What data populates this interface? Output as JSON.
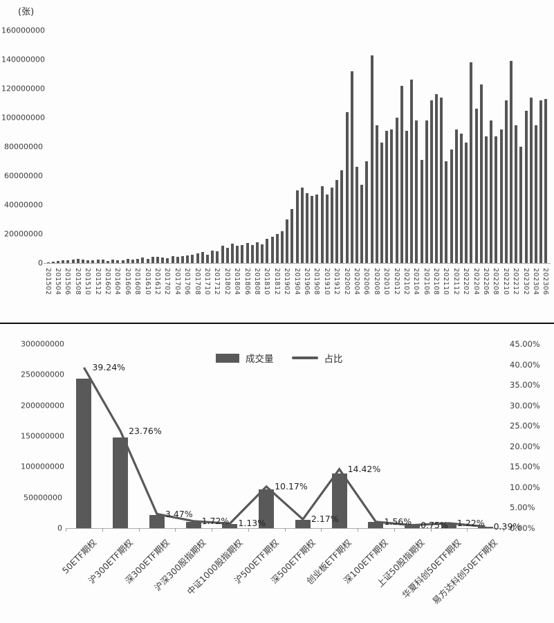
{
  "chart_data": [
    {
      "type": "bar",
      "title": "",
      "unit_label": "(张)",
      "xlabel": "",
      "ylabel": "(张)",
      "ylim": [
        0,
        160000000
      ],
      "ytick_labels": [
        "0",
        "20000000",
        "40000000",
        "60000000",
        "80000000",
        "100000000",
        "120000000",
        "140000000",
        "160000000"
      ],
      "xtick_every": 2,
      "grid": false,
      "bar_color": "#555555",
      "x": [
        "201502",
        "201503",
        "201504",
        "201505",
        "201506",
        "201507",
        "201508",
        "201509",
        "201510",
        "201511",
        "201512",
        "201601",
        "201602",
        "201603",
        "201604",
        "201605",
        "201606",
        "201607",
        "201608",
        "201609",
        "201610",
        "201611",
        "201612",
        "201701",
        "201702",
        "201703",
        "201704",
        "201705",
        "201706",
        "201707",
        "201708",
        "201709",
        "201710",
        "201711",
        "201712",
        "201801",
        "201802",
        "201803",
        "201804",
        "201805",
        "201806",
        "201807",
        "201808",
        "201809",
        "201810",
        "201811",
        "201812",
        "201901",
        "201902",
        "201903",
        "201904",
        "201905",
        "201906",
        "201907",
        "201908",
        "201909",
        "201910",
        "201911",
        "201912",
        "202001",
        "202002",
        "202003",
        "202004",
        "202005",
        "202006",
        "202007",
        "202008",
        "202009",
        "202010",
        "202011",
        "202012",
        "202101",
        "202102",
        "202103",
        "202104",
        "202105",
        "202106",
        "202107",
        "202108",
        "202109",
        "202110",
        "202111",
        "202112",
        "202201",
        "202202",
        "202203",
        "202204",
        "202205",
        "202206",
        "202207",
        "202208",
        "202209",
        "202210",
        "202211",
        "202212",
        "202301",
        "202302",
        "202303",
        "202304",
        "202305",
        "202306"
      ],
      "values": [
        400000,
        900000,
        1300000,
        1800000,
        2100000,
        2400000,
        2700000,
        2300000,
        1700000,
        2100000,
        2400000,
        2500000,
        1600000,
        2200000,
        2000000,
        2100000,
        2700000,
        2500000,
        3100000,
        3700000,
        2700000,
        4300000,
        4500000,
        3700000,
        3300000,
        4900000,
        4300000,
        4700000,
        5300000,
        5900000,
        6900000,
        7500000,
        5900000,
        8500000,
        7900000,
        12000000,
        10500000,
        13500000,
        12000000,
        12500000,
        14000000,
        12500000,
        14500000,
        13000000,
        16500000,
        18000000,
        20000000,
        22000000,
        30000000,
        37000000,
        50000000,
        52000000,
        48000000,
        46000000,
        47000000,
        53000000,
        47000000,
        52000000,
        57000000,
        64000000,
        104000000,
        132000000,
        66000000,
        54000000,
        70000000,
        143000000,
        95000000,
        83000000,
        91000000,
        92000000,
        100000000,
        122000000,
        91000000,
        126000000,
        98000000,
        71000000,
        98000000,
        112000000,
        116000000,
        114000000,
        70000000,
        78000000,
        92000000,
        89000000,
        83000000,
        138000000,
        106000000,
        123000000,
        87000000,
        98000000,
        87000000,
        92000000,
        112000000,
        139000000,
        95000000,
        80000000,
        105000000,
        114000000,
        95000000,
        112000000,
        113000000
      ]
    },
    {
      "type": "bar+line",
      "title": "",
      "legend": [
        "成交量",
        "占比"
      ],
      "legend_position": "top",
      "grid": false,
      "colors": {
        "bar": "#595959",
        "line": "#595959"
      },
      "categories": [
        "50ETF期权",
        "沪300ETF期权",
        "深300ETF期权",
        "沪深300股指期权",
        "中证1000股指期权",
        "沪500ETF期权",
        "深500ETF期权",
        "创业板ETF期权",
        "深100ETF期权",
        "上证50股指期权",
        "华夏科创50ETF期权",
        "易方达科创50ETF期权"
      ],
      "left_axis": {
        "min": 0,
        "max": 300000000,
        "step": 50000000,
        "tick_labels": [
          "0",
          "50000000",
          "100000000",
          "150000000",
          "200000000",
          "250000000",
          "300000000"
        ]
      },
      "right_axis": {
        "min": 0,
        "max": 45,
        "step": 5,
        "tick_labels": [
          "0.00%",
          "5.00%",
          "10.00%",
          "15.00%",
          "20.00%",
          "25.00%",
          "30.00%",
          "35.00%",
          "40.00%",
          "45.00%"
        ]
      },
      "series": [
        {
          "name": "成交量",
          "type": "bar",
          "axis": "left",
          "values": [
            243300000,
            147300000,
            21500000,
            10700000,
            7000000,
            63100000,
            13500000,
            89400000,
            9700000,
            4700000,
            7600000,
            2400000
          ]
        },
        {
          "name": "占比",
          "type": "line",
          "axis": "right",
          "values": [
            39.24,
            23.76,
            3.47,
            1.72,
            1.13,
            10.17,
            2.17,
            14.42,
            1.56,
            0.75,
            1.22,
            0.39
          ],
          "labels": [
            "39.24%",
            "23.76%",
            "3.47%",
            "1.72%",
            "1.13%",
            "10.17%",
            "2.17%",
            "14.42%",
            "1.56%",
            "0.75%",
            "1.22%",
            "0.39%"
          ]
        }
      ]
    }
  ]
}
